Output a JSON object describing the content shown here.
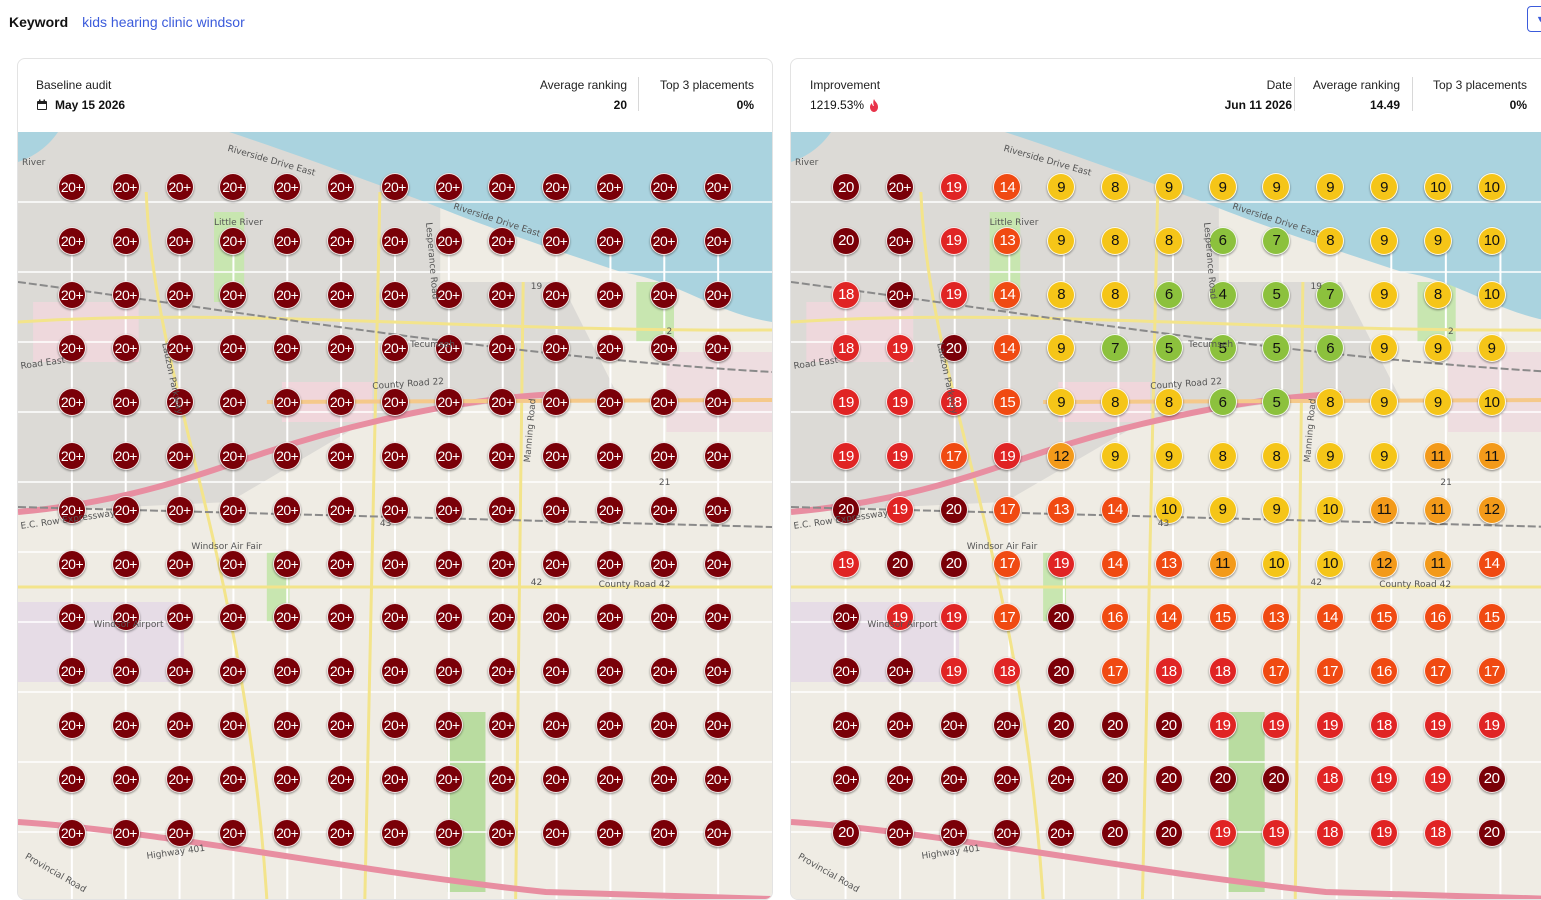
{
  "keyword": {
    "label": "Keyword",
    "value": "kids hearing clinic windsor"
  },
  "left_card": {
    "title": "Baseline audit",
    "date": "May 15 2026",
    "avg_label": "Average ranking",
    "avg_value": "20",
    "top3_label": "Top 3 placements",
    "top3_value": "0%",
    "grid": [
      [
        "20+",
        "20+",
        "20+",
        "20+",
        "20+",
        "20+",
        "20+",
        "20+",
        "20+",
        "20+",
        "20+",
        "20+",
        "20+"
      ],
      [
        "20+",
        "20+",
        "20+",
        "20+",
        "20+",
        "20+",
        "20+",
        "20+",
        "20+",
        "20+",
        "20+",
        "20+",
        "20+"
      ],
      [
        "20+",
        "20+",
        "20+",
        "20+",
        "20+",
        "20+",
        "20+",
        "20+",
        "20+",
        "20+",
        "20+",
        "20+",
        "20+"
      ],
      [
        "20+",
        "20+",
        "20+",
        "20+",
        "20+",
        "20+",
        "20+",
        "20+",
        "20+",
        "20+",
        "20+",
        "20+",
        "20+"
      ],
      [
        "20+",
        "20+",
        "20+",
        "20+",
        "20+",
        "20+",
        "20+",
        "20+",
        "20+",
        "20+",
        "20+",
        "20+",
        "20+"
      ],
      [
        "20+",
        "20+",
        "20+",
        "20+",
        "20+",
        "20+",
        "20+",
        "20+",
        "20+",
        "20+",
        "20+",
        "20+",
        "20+"
      ],
      [
        "20+",
        "20+",
        "20+",
        "20+",
        "20+",
        "20+",
        "20+",
        "20+",
        "20+",
        "20+",
        "20+",
        "20+",
        "20+"
      ],
      [
        "20+",
        "20+",
        "20+",
        "20+",
        "20+",
        "20+",
        "20+",
        "20+",
        "20+",
        "20+",
        "20+",
        "20+",
        "20+"
      ],
      [
        "20+",
        "20+",
        "20+",
        "20+",
        "20+",
        "20+",
        "20+",
        "20+",
        "20+",
        "20+",
        "20+",
        "20+",
        "20+"
      ],
      [
        "20+",
        "20+",
        "20+",
        "20+",
        "20+",
        "20+",
        "20+",
        "20+",
        "20+",
        "20+",
        "20+",
        "20+",
        "20+"
      ],
      [
        "20+",
        "20+",
        "20+",
        "20+",
        "20+",
        "20+",
        "20+",
        "20+",
        "20+",
        "20+",
        "20+",
        "20+",
        "20+"
      ],
      [
        "20+",
        "20+",
        "20+",
        "20+",
        "20+",
        "20+",
        "20+",
        "20+",
        "20+",
        "20+",
        "20+",
        "20+",
        "20+"
      ],
      [
        "20+",
        "20+",
        "20+",
        "20+",
        "20+",
        "20+",
        "20+",
        "20+",
        "20+",
        "20+",
        "20+",
        "20+",
        "20+"
      ]
    ]
  },
  "right_card": {
    "title": "Improvement",
    "improvement_value": "1219.53%",
    "date_label": "Date",
    "date_value": "Jun 11 2026",
    "avg_label": "Average ranking",
    "avg_value": "14.49",
    "top3_label": "Top 3 placements",
    "top3_value": "0%",
    "grid": [
      [
        "20",
        "20+",
        "19",
        "14",
        "9",
        "8",
        "9",
        "9",
        "9",
        "9",
        "9",
        "10",
        "10"
      ],
      [
        "20",
        "20+",
        "19",
        "13",
        "9",
        "8",
        "8",
        "6",
        "7",
        "8",
        "9",
        "9",
        "10"
      ],
      [
        "18",
        "20+",
        "19",
        "14",
        "8",
        "8",
        "6",
        "4",
        "5",
        "7",
        "9",
        "8",
        "10"
      ],
      [
        "18",
        "19",
        "20",
        "14",
        "9",
        "7",
        "5",
        "5",
        "5",
        "6",
        "9",
        "9",
        "9"
      ],
      [
        "19",
        "19",
        "18",
        "15",
        "9",
        "8",
        "8",
        "6",
        "5",
        "8",
        "9",
        "9",
        "10"
      ],
      [
        "19",
        "19",
        "17",
        "19",
        "12",
        "9",
        "9",
        "8",
        "8",
        "9",
        "9",
        "11",
        "11"
      ],
      [
        "20",
        "19",
        "20",
        "17",
        "13",
        "14",
        "10",
        "9",
        "9",
        "10",
        "11",
        "11",
        "12"
      ],
      [
        "19",
        "20",
        "20",
        "17",
        "19",
        "14",
        "13",
        "11",
        "10",
        "10",
        "12",
        "11",
        "14"
      ],
      [
        "20+",
        "19",
        "19",
        "17",
        "20",
        "16",
        "14",
        "15",
        "13",
        "14",
        "15",
        "16",
        "15"
      ],
      [
        "20+",
        "20+",
        "19",
        "18",
        "20",
        "17",
        "18",
        "18",
        "17",
        "17",
        "16",
        "17",
        "17"
      ],
      [
        "20+",
        "20+",
        "20+",
        "20+",
        "20",
        "20",
        "20",
        "19",
        "19",
        "19",
        "18",
        "19",
        "19"
      ],
      [
        "20+",
        "20+",
        "20+",
        "20+",
        "20+",
        "20",
        "20",
        "20",
        "20",
        "18",
        "19",
        "19",
        "20"
      ],
      [
        "20",
        "20+",
        "20+",
        "20+",
        "20+",
        "20",
        "20",
        "19",
        "19",
        "18",
        "19",
        "18",
        "20"
      ]
    ]
  },
  "map_labels": {
    "riverside1": "Riverside Drive East",
    "riverside2": "Riverside Drive East",
    "little_river": "Little River",
    "lesperance": "Lesperance Road",
    "tecumseh": "Tecumseh",
    "county22": "County Road 22",
    "road_east": "Road East",
    "lauzon": "Lauzon Parkway",
    "manning": "Manning Road",
    "ec_row": "E.C. Row Expressway",
    "windsor_fair": "Windsor Air Fair",
    "county42": "County Road 42",
    "windsor_airport": "Windsor Airport",
    "highway401": "Highway 401",
    "provincial": "Provincial Road",
    "shield19": "19",
    "shield43": "43",
    "shield42": "42",
    "shield21": "21",
    "shield2": "2",
    "river": "River"
  },
  "colors": {
    "dark_red": "#7a0008",
    "red": "#e02424",
    "orange_red": "#f04a12",
    "orange": "#f39a1a",
    "yellow": "#f5c518",
    "yellow_green": "#a6cf1f",
    "green": "#8cc13d",
    "water": "#aad3df",
    "land": "#efece4"
  },
  "icons": {
    "calendar": "calendar-icon",
    "fire": "fire-icon",
    "dropdown": "chevron-down-icon"
  }
}
